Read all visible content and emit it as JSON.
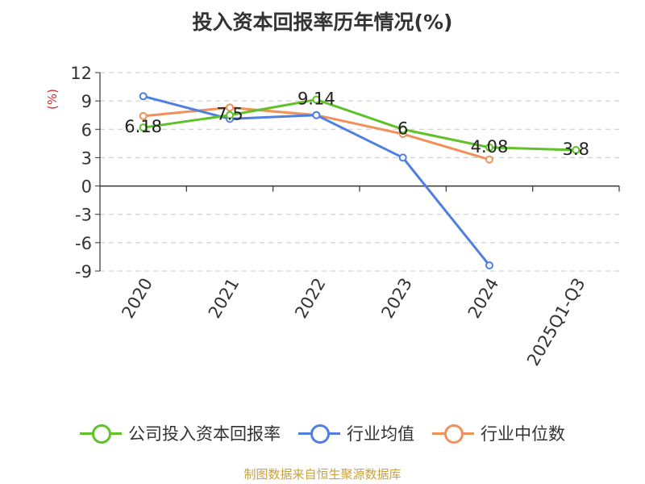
{
  "title": "投入资本回报率历年情况(%)",
  "source": "制图数据来自恒生聚源数据库",
  "chart_data": {
    "type": "line",
    "title": "投入资本回报率历年情况(%)",
    "ylabel": "(%)",
    "xlabel": "",
    "categories": [
      "2020",
      "2021",
      "2022",
      "2023",
      "2024",
      "2025Q1-Q3"
    ],
    "ylim": [
      -9,
      12
    ],
    "yticks": [
      12,
      9,
      6,
      3,
      0,
      -3,
      -6,
      -9
    ],
    "grid": true,
    "legend_position": "bottom",
    "series": [
      {
        "name": "公司投入资本回报率",
        "color": "#5fc228",
        "values": [
          6.18,
          7.5,
          9.14,
          6,
          4.08,
          3.8
        ],
        "labels": [
          "6.18",
          "7.5",
          "9.14",
          "6",
          "4.08",
          "3.8"
        ]
      },
      {
        "name": "行业均值",
        "color": "#4f7fe0",
        "values": [
          9.5,
          7.1,
          7.5,
          3.0,
          -8.4,
          null
        ],
        "labels": []
      },
      {
        "name": "行业中位数",
        "color": "#f0905a",
        "values": [
          7.4,
          8.3,
          7.5,
          5.5,
          2.8,
          null
        ],
        "labels": []
      }
    ]
  }
}
